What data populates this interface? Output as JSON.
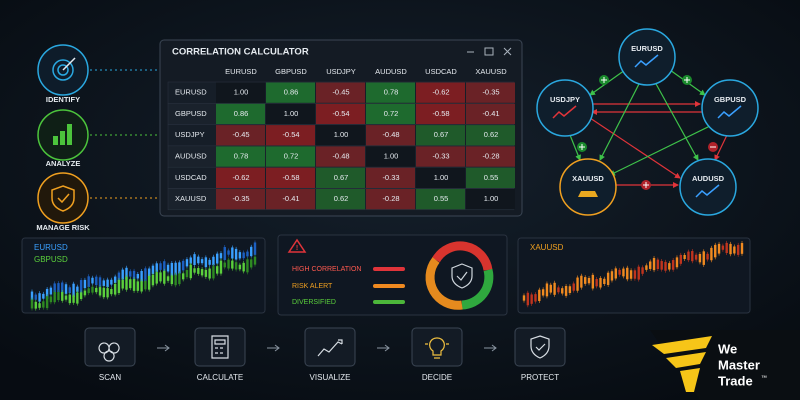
{
  "steps_left": [
    "IDENTIFY",
    "ANALYZE",
    "MANAGE RISK"
  ],
  "calculator": {
    "title": "CORRELATION CALCULATOR",
    "columns": [
      "EURUSD",
      "GBPUSD",
      "USDJPY",
      "AUDUSD",
      "USDCAD",
      "XAUUSD"
    ],
    "rows": [
      {
        "label": "EURUSD",
        "cells": [
          "1.00",
          "0.86",
          "-0.45",
          "0.78",
          "-0.62",
          "-0.35"
        ]
      },
      {
        "label": "GBPUSD",
        "cells": [
          "0.86",
          "1.00",
          "-0.54",
          "0.72",
          "-0.58",
          "-0.41"
        ]
      },
      {
        "label": "USDJPY",
        "cells": [
          "-0.45",
          "-0.54",
          "1.00",
          "-0.48",
          "0.67",
          "0.62"
        ]
      },
      {
        "label": "AUDUSD",
        "cells": [
          "0.78",
          "0.72",
          "-0.48",
          "1.00",
          "-0.33",
          "-0.28"
        ]
      },
      {
        "label": "USDCAD",
        "cells": [
          "-0.62",
          "-0.58",
          "0.67",
          "-0.33",
          "1.00",
          "0.55"
        ]
      },
      {
        "label": "XAUUSD",
        "cells": [
          "-0.35",
          "-0.41",
          "0.62",
          "-0.28",
          "0.55",
          "1.00"
        ]
      }
    ]
  },
  "network": {
    "nodes": [
      "EURUSD",
      "USDJPY",
      "GBPUSD",
      "XAUUSD",
      "AUDUSD"
    ]
  },
  "charts": {
    "left_legend": [
      "EURUSD",
      "GBPUSD"
    ],
    "right_legend": [
      "XAUUSD"
    ]
  },
  "risk_legend": [
    "HIGH CORRELATION",
    "RISK ALERT",
    "DIVERSIFIED"
  ],
  "workflow": [
    "SCAN",
    "CALCULATE",
    "VISUALIZE",
    "DECIDE",
    "PROTECT"
  ],
  "logo": {
    "lines": [
      "We",
      "Master",
      "Trade"
    ],
    "mark": "™"
  }
}
